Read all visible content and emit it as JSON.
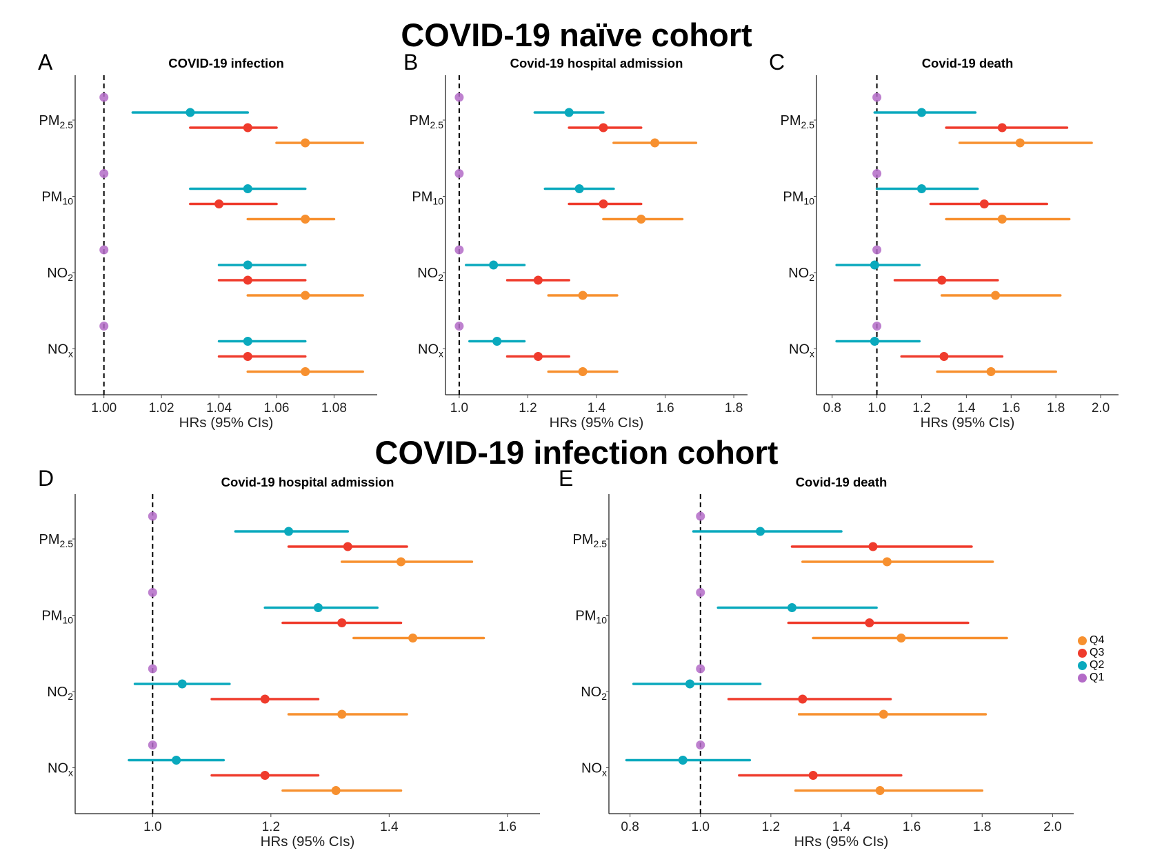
{
  "titles": {
    "naive": "COVID-19 naïve cohort",
    "infection": "COVID-19 infection cohort"
  },
  "colors": {
    "Q1": "#b36bc7",
    "Q2": "#0aa9bd",
    "Q3": "#ef3b2c",
    "Q4": "#f7902f"
  },
  "legend": [
    {
      "key": "Q4",
      "label": "Q4"
    },
    {
      "key": "Q3",
      "label": "Q3"
    },
    {
      "key": "Q2",
      "label": "Q2"
    },
    {
      "key": "Q1",
      "label": "Q1"
    }
  ],
  "chart_data": [
    {
      "panel": "A",
      "type": "forest",
      "title": "COVID-19 infection",
      "xlabel": "HRs (95% CIs)",
      "xlim": [
        0.99,
        1.095
      ],
      "ref": 1.0,
      "ticks": [
        1.0,
        1.02,
        1.04,
        1.06,
        1.08
      ],
      "tick_labels": [
        "1.00",
        "1.02",
        "1.04",
        "1.06",
        "1.08"
      ],
      "pollutants": [
        {
          "main": "PM",
          "sub": "2.5",
          "series": [
            {
              "q": "Q1",
              "hr": 1.0,
              "lo": 1.0,
              "hi": 1.0
            },
            {
              "q": "Q2",
              "hr": 1.03,
              "lo": 1.01,
              "hi": 1.05
            },
            {
              "q": "Q3",
              "hr": 1.05,
              "lo": 1.03,
              "hi": 1.06
            },
            {
              "q": "Q4",
              "hr": 1.07,
              "lo": 1.06,
              "hi": 1.09
            }
          ]
        },
        {
          "main": "PM",
          "sub": "10",
          "series": [
            {
              "q": "Q1",
              "hr": 1.0,
              "lo": 1.0,
              "hi": 1.0
            },
            {
              "q": "Q2",
              "hr": 1.05,
              "lo": 1.03,
              "hi": 1.07
            },
            {
              "q": "Q3",
              "hr": 1.04,
              "lo": 1.03,
              "hi": 1.06
            },
            {
              "q": "Q4",
              "hr": 1.07,
              "lo": 1.05,
              "hi": 1.08
            }
          ]
        },
        {
          "main": "NO",
          "sub": "2",
          "series": [
            {
              "q": "Q1",
              "hr": 1.0,
              "lo": 1.0,
              "hi": 1.0
            },
            {
              "q": "Q2",
              "hr": 1.05,
              "lo": 1.04,
              "hi": 1.07
            },
            {
              "q": "Q3",
              "hr": 1.05,
              "lo": 1.04,
              "hi": 1.07
            },
            {
              "q": "Q4",
              "hr": 1.07,
              "lo": 1.05,
              "hi": 1.09
            }
          ]
        },
        {
          "main": "NO",
          "sub": "x",
          "series": [
            {
              "q": "Q1",
              "hr": 1.0,
              "lo": 1.0,
              "hi": 1.0
            },
            {
              "q": "Q2",
              "hr": 1.05,
              "lo": 1.04,
              "hi": 1.07
            },
            {
              "q": "Q3",
              "hr": 1.05,
              "lo": 1.04,
              "hi": 1.07
            },
            {
              "q": "Q4",
              "hr": 1.07,
              "lo": 1.05,
              "hi": 1.09
            }
          ]
        }
      ]
    },
    {
      "panel": "B",
      "type": "forest",
      "title": "Covid-19 hospital admission",
      "xlabel": "HRs (95% CIs)",
      "xlim": [
        0.96,
        1.84
      ],
      "ref": 1.0,
      "ticks": [
        1.0,
        1.2,
        1.4,
        1.6,
        1.8
      ],
      "tick_labels": [
        "1.0",
        "1.2",
        "1.4",
        "1.6",
        "1.8"
      ],
      "pollutants": [
        {
          "main": "PM",
          "sub": "2.5",
          "series": [
            {
              "q": "Q1",
              "hr": 1.0,
              "lo": 1.0,
              "hi": 1.0
            },
            {
              "q": "Q2",
              "hr": 1.32,
              "lo": 1.22,
              "hi": 1.42
            },
            {
              "q": "Q3",
              "hr": 1.42,
              "lo": 1.32,
              "hi": 1.53
            },
            {
              "q": "Q4",
              "hr": 1.57,
              "lo": 1.45,
              "hi": 1.69
            }
          ]
        },
        {
          "main": "PM",
          "sub": "10",
          "series": [
            {
              "q": "Q1",
              "hr": 1.0,
              "lo": 1.0,
              "hi": 1.0
            },
            {
              "q": "Q2",
              "hr": 1.35,
              "lo": 1.25,
              "hi": 1.45
            },
            {
              "q": "Q3",
              "hr": 1.42,
              "lo": 1.32,
              "hi": 1.53
            },
            {
              "q": "Q4",
              "hr": 1.53,
              "lo": 1.42,
              "hi": 1.65
            }
          ]
        },
        {
          "main": "NO",
          "sub": "2",
          "series": [
            {
              "q": "Q1",
              "hr": 1.0,
              "lo": 1.0,
              "hi": 1.0
            },
            {
              "q": "Q2",
              "hr": 1.1,
              "lo": 1.02,
              "hi": 1.19
            },
            {
              "q": "Q3",
              "hr": 1.23,
              "lo": 1.14,
              "hi": 1.32
            },
            {
              "q": "Q4",
              "hr": 1.36,
              "lo": 1.26,
              "hi": 1.46
            }
          ]
        },
        {
          "main": "NO",
          "sub": "x",
          "series": [
            {
              "q": "Q1",
              "hr": 1.0,
              "lo": 1.0,
              "hi": 1.0
            },
            {
              "q": "Q2",
              "hr": 1.11,
              "lo": 1.03,
              "hi": 1.19
            },
            {
              "q": "Q3",
              "hr": 1.23,
              "lo": 1.14,
              "hi": 1.32
            },
            {
              "q": "Q4",
              "hr": 1.36,
              "lo": 1.26,
              "hi": 1.46
            }
          ]
        }
      ]
    },
    {
      "panel": "C",
      "type": "forest",
      "title": "Covid-19 death",
      "xlabel": "HRs (95% CIs)",
      "xlim": [
        0.73,
        2.08
      ],
      "ref": 1.0,
      "ticks": [
        0.8,
        1.0,
        1.2,
        1.4,
        1.6,
        1.8,
        2.0
      ],
      "tick_labels": [
        "0.8",
        "1.0",
        "1.2",
        "1.4",
        "1.6",
        "1.8",
        "2.0"
      ],
      "pollutants": [
        {
          "main": "PM",
          "sub": "2.5",
          "series": [
            {
              "q": "Q1",
              "hr": 1.0,
              "lo": 1.0,
              "hi": 1.0
            },
            {
              "q": "Q2",
              "hr": 1.2,
              "lo": 0.99,
              "hi": 1.44
            },
            {
              "q": "Q3",
              "hr": 1.56,
              "lo": 1.31,
              "hi": 1.85
            },
            {
              "q": "Q4",
              "hr": 1.64,
              "lo": 1.37,
              "hi": 1.96
            }
          ]
        },
        {
          "main": "PM",
          "sub": "10",
          "series": [
            {
              "q": "Q1",
              "hr": 1.0,
              "lo": 1.0,
              "hi": 1.0
            },
            {
              "q": "Q2",
              "hr": 1.2,
              "lo": 1.0,
              "hi": 1.45
            },
            {
              "q": "Q3",
              "hr": 1.48,
              "lo": 1.24,
              "hi": 1.76
            },
            {
              "q": "Q4",
              "hr": 1.56,
              "lo": 1.31,
              "hi": 1.86
            }
          ]
        },
        {
          "main": "NO",
          "sub": "2",
          "series": [
            {
              "q": "Q1",
              "hr": 1.0,
              "lo": 1.0,
              "hi": 1.0
            },
            {
              "q": "Q2",
              "hr": 0.99,
              "lo": 0.82,
              "hi": 1.19
            },
            {
              "q": "Q3",
              "hr": 1.29,
              "lo": 1.08,
              "hi": 1.54
            },
            {
              "q": "Q4",
              "hr": 1.53,
              "lo": 1.29,
              "hi": 1.82
            }
          ]
        },
        {
          "main": "NO",
          "sub": "x",
          "series": [
            {
              "q": "Q1",
              "hr": 1.0,
              "lo": 1.0,
              "hi": 1.0
            },
            {
              "q": "Q2",
              "hr": 0.99,
              "lo": 0.82,
              "hi": 1.19
            },
            {
              "q": "Q3",
              "hr": 1.3,
              "lo": 1.11,
              "hi": 1.56
            },
            {
              "q": "Q4",
              "hr": 1.51,
              "lo": 1.27,
              "hi": 1.8
            }
          ]
        }
      ]
    },
    {
      "panel": "D",
      "type": "forest",
      "title": "Covid-19 hospital admission",
      "xlabel": "HRs (95% CIs)",
      "xlim": [
        0.869,
        1.655
      ],
      "ref": 1.0,
      "ticks": [
        1.0,
        1.2,
        1.4,
        1.6
      ],
      "tick_labels": [
        "1.0",
        "1.2",
        "1.4",
        "1.6"
      ],
      "pollutants": [
        {
          "main": "PM",
          "sub": "2.5",
          "series": [
            {
              "q": "Q1",
              "hr": 1.0,
              "lo": 1.0,
              "hi": 1.0
            },
            {
              "q": "Q2",
              "hr": 1.23,
              "lo": 1.14,
              "hi": 1.33
            },
            {
              "q": "Q3",
              "hr": 1.33,
              "lo": 1.23,
              "hi": 1.43
            },
            {
              "q": "Q4",
              "hr": 1.42,
              "lo": 1.32,
              "hi": 1.54
            }
          ]
        },
        {
          "main": "PM",
          "sub": "10",
          "series": [
            {
              "q": "Q1",
              "hr": 1.0,
              "lo": 1.0,
              "hi": 1.0
            },
            {
              "q": "Q2",
              "hr": 1.28,
              "lo": 1.19,
              "hi": 1.38
            },
            {
              "q": "Q3",
              "hr": 1.32,
              "lo": 1.22,
              "hi": 1.42
            },
            {
              "q": "Q4",
              "hr": 1.44,
              "lo": 1.34,
              "hi": 1.56
            }
          ]
        },
        {
          "main": "NO",
          "sub": "2",
          "series": [
            {
              "q": "Q1",
              "hr": 1.0,
              "lo": 1.0,
              "hi": 1.0
            },
            {
              "q": "Q2",
              "hr": 1.05,
              "lo": 0.97,
              "hi": 1.13
            },
            {
              "q": "Q3",
              "hr": 1.19,
              "lo": 1.1,
              "hi": 1.28
            },
            {
              "q": "Q4",
              "hr": 1.32,
              "lo": 1.23,
              "hi": 1.43
            }
          ]
        },
        {
          "main": "NO",
          "sub": "x",
          "series": [
            {
              "q": "Q1",
              "hr": 1.0,
              "lo": 1.0,
              "hi": 1.0
            },
            {
              "q": "Q2",
              "hr": 1.04,
              "lo": 0.96,
              "hi": 1.12
            },
            {
              "q": "Q3",
              "hr": 1.19,
              "lo": 1.1,
              "hi": 1.28
            },
            {
              "q": "Q4",
              "hr": 1.31,
              "lo": 1.22,
              "hi": 1.42
            }
          ]
        }
      ]
    },
    {
      "panel": "E",
      "type": "forest",
      "title": "Covid-19 death",
      "xlabel": "HRs (95% CIs)",
      "xlim": [
        0.74,
        2.06
      ],
      "ref": 1.0,
      "ticks": [
        0.8,
        1.0,
        1.2,
        1.4,
        1.6,
        1.8,
        2.0
      ],
      "tick_labels": [
        "0.8",
        "1.0",
        "1.2",
        "1.4",
        "1.6",
        "1.8",
        "2.0"
      ],
      "pollutants": [
        {
          "main": "PM",
          "sub": "2.5",
          "series": [
            {
              "q": "Q1",
              "hr": 1.0,
              "lo": 1.0,
              "hi": 1.0
            },
            {
              "q": "Q2",
              "hr": 1.17,
              "lo": 0.98,
              "hi": 1.4
            },
            {
              "q": "Q3",
              "hr": 1.49,
              "lo": 1.26,
              "hi": 1.77
            },
            {
              "q": "Q4",
              "hr": 1.53,
              "lo": 1.29,
              "hi": 1.83
            }
          ]
        },
        {
          "main": "PM",
          "sub": "10",
          "series": [
            {
              "q": "Q1",
              "hr": 1.0,
              "lo": 1.0,
              "hi": 1.0
            },
            {
              "q": "Q2",
              "hr": 1.26,
              "lo": 1.05,
              "hi": 1.5
            },
            {
              "q": "Q3",
              "hr": 1.48,
              "lo": 1.25,
              "hi": 1.76
            },
            {
              "q": "Q4",
              "hr": 1.57,
              "lo": 1.32,
              "hi": 1.87
            }
          ]
        },
        {
          "main": "NO",
          "sub": "2",
          "series": [
            {
              "q": "Q1",
              "hr": 1.0,
              "lo": 1.0,
              "hi": 1.0
            },
            {
              "q": "Q2",
              "hr": 0.97,
              "lo": 0.81,
              "hi": 1.17
            },
            {
              "q": "Q3",
              "hr": 1.29,
              "lo": 1.08,
              "hi": 1.54
            },
            {
              "q": "Q4",
              "hr": 1.52,
              "lo": 1.28,
              "hi": 1.81
            }
          ]
        },
        {
          "main": "NO",
          "sub": "x",
          "series": [
            {
              "q": "Q1",
              "hr": 1.0,
              "lo": 1.0,
              "hi": 1.0
            },
            {
              "q": "Q2",
              "hr": 0.95,
              "lo": 0.79,
              "hi": 1.14
            },
            {
              "q": "Q3",
              "hr": 1.32,
              "lo": 1.11,
              "hi": 1.57
            },
            {
              "q": "Q4",
              "hr": 1.51,
              "lo": 1.27,
              "hi": 1.8
            }
          ]
        }
      ]
    }
  ]
}
